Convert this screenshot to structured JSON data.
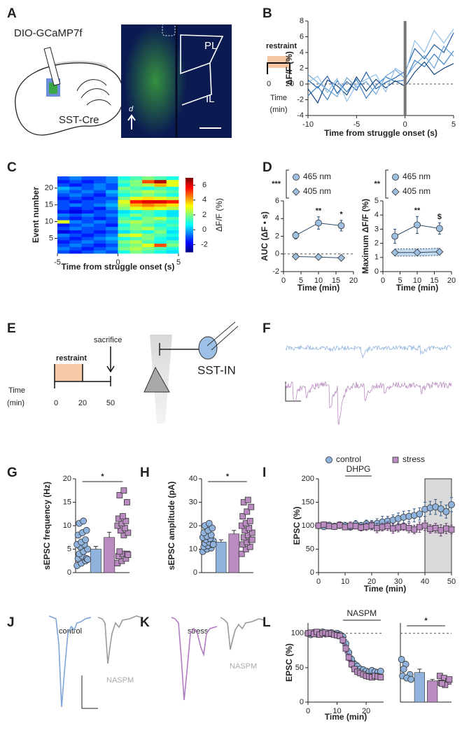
{
  "panel_labels": [
    "A",
    "B",
    "C",
    "D",
    "E",
    "F",
    "G",
    "H",
    "I",
    "J",
    "K",
    "L"
  ],
  "diagrams": {
    "a": {
      "virus": "DIO-GCaMP7f",
      "line": "SST-Cre",
      "top_region": "PL",
      "bottom_region": "IL",
      "orientation": "d"
    },
    "b_inset": {
      "label": "restraint",
      "start": "0",
      "end": "20",
      "axis_title": "Time",
      "axis_unit": "(min)"
    },
    "e": {
      "label": "restraint",
      "event": "sacrifice",
      "axis_title": "Time",
      "axis_unit": "(min)",
      "start": "0",
      "mid": "20",
      "end": "50",
      "cell": "SST-IN"
    },
    "j": {
      "condition": "control",
      "drug": "NASPM"
    },
    "k": {
      "condition": "stress",
      "drug": "NASPM"
    }
  },
  "chart_data": [
    {
      "type": "line",
      "ylabel": "ΔF/F (%)",
      "xlabel": "Time from struggle onset (s)",
      "x": [
        -10,
        -9,
        -8,
        -7,
        -6,
        -5,
        -4,
        -3,
        -2,
        -1,
        0,
        1,
        2,
        3,
        4,
        5
      ],
      "xlim": [
        -10,
        5
      ],
      "xticks": [
        -10,
        -5,
        0,
        5
      ],
      "ylim": [
        -4,
        8
      ],
      "yticks": [
        -4,
        -2,
        0,
        2,
        4,
        6,
        8
      ],
      "reference_line": 0,
      "onset_x": 0,
      "series": [
        {
          "color": "#1f5fa8",
          "values": [
            0.5,
            -0.5,
            1.0,
            -1.2,
            0.3,
            -0.8,
            1.5,
            -0.6,
            0.2,
            0.8,
            1.6,
            4.5,
            3.2,
            5.0,
            4.0,
            6.5
          ]
        },
        {
          "color": "#3b7fc4",
          "values": [
            -1.5,
            -0.3,
            -2.0,
            0.4,
            -1.0,
            0.6,
            -1.8,
            -0.2,
            0.9,
            0.3,
            0.5,
            3.0,
            2.2,
            3.8,
            2.5,
            4.2
          ]
        },
        {
          "color": "#6aa4d8",
          "values": [
            1.2,
            0.2,
            -0.7,
            -1.6,
            0.8,
            -0.4,
            0.3,
            -1.3,
            1.0,
            1.8,
            0.7,
            2.4,
            3.6,
            2.0,
            4.8,
            3.5
          ]
        },
        {
          "color": "#12457e",
          "values": [
            -0.6,
            -2.4,
            0.5,
            -0.2,
            -1.4,
            0.9,
            -0.9,
            0.6,
            -0.5,
            0.4,
            -0.3,
            1.5,
            2.8,
            1.2,
            2.0,
            2.6
          ]
        },
        {
          "color": "#8fbfe8",
          "values": [
            0.2,
            1.0,
            -1.1,
            0.7,
            -2.2,
            -0.1,
            0.6,
            1.2,
            -1.0,
            2.0,
            1.2,
            5.5,
            4.0,
            6.8,
            5.2,
            7.0
          ]
        }
      ]
    },
    {
      "type": "heatmap",
      "ylabel": "Event number",
      "xlabel": "Time from struggle onset (s)",
      "x": [
        -4.5,
        -3.5,
        -2.5,
        -1.5,
        -0.5,
        0.5,
        1.5,
        2.5,
        3.5,
        4.5
      ],
      "y": [
        1,
        2,
        3,
        4,
        5,
        6,
        7,
        8,
        9,
        10,
        11,
        12,
        13,
        14,
        15,
        16,
        17,
        18,
        19,
        20,
        21,
        22,
        23
      ],
      "xlim": [
        -5,
        5
      ],
      "xticks": [
        -5,
        0,
        5
      ],
      "ylim": [
        0.5,
        23.5
      ],
      "yticks": [
        5,
        10,
        15,
        20
      ],
      "clim": [
        -3,
        7
      ],
      "cticks": [
        -2,
        0,
        2,
        4,
        6
      ],
      "clabel": "ΔF/F (%)",
      "values": [
        [
          -1,
          -1.5,
          -1,
          -0.5,
          -1,
          1,
          2,
          1.5,
          1,
          0.5
        ],
        [
          -0.5,
          -1,
          -1.5,
          -1,
          -0.5,
          2,
          2.5,
          2,
          1.5,
          1
        ],
        [
          -1,
          -0.5,
          -1,
          -1.5,
          -1,
          1.5,
          2,
          3,
          5,
          2
        ],
        [
          -1.5,
          -1,
          -0.5,
          -1,
          -0.5,
          2,
          2.5,
          1.5,
          1,
          1.5
        ],
        [
          -1,
          -1.5,
          -1,
          -0.5,
          0,
          1,
          1.5,
          2,
          1,
          0.5
        ],
        [
          -0.5,
          -1,
          -1.5,
          -1,
          -0.5,
          2.5,
          3,
          2,
          1.5,
          1
        ],
        [
          -2,
          -1.5,
          -1,
          -1.5,
          -1,
          0.5,
          1.5,
          1,
          2,
          0.5
        ],
        [
          -1,
          -0.5,
          -1,
          -1,
          -0.5,
          1.5,
          2,
          2.5,
          1.5,
          1
        ],
        [
          -1.5,
          -1,
          -0.5,
          -1,
          -1.5,
          1,
          2,
          1.5,
          1,
          1.5
        ],
        [
          3,
          -0.5,
          -1,
          -0.5,
          -1,
          2,
          2.5,
          2,
          1.5,
          1
        ],
        [
          -1,
          -1.5,
          -1,
          -1.5,
          -1,
          1.5,
          1,
          2,
          2.5,
          1.5
        ],
        [
          -0.5,
          -1,
          -0.5,
          -1,
          -0.5,
          1,
          2,
          1.5,
          1,
          0.5
        ],
        [
          -1.5,
          -2,
          -1.5,
          -1,
          -1,
          0.5,
          1,
          1.5,
          1,
          0.5
        ],
        [
          -1,
          -1.5,
          -1,
          -1.5,
          -0.5,
          2,
          3,
          3.5,
          3,
          2.5
        ],
        [
          -1,
          -0.5,
          -1,
          -0.5,
          0,
          2.5,
          4,
          4.5,
          4,
          3.5
        ],
        [
          -1,
          -1.5,
          -1,
          -1,
          -0.5,
          3,
          5.5,
          6,
          6,
          5.5
        ],
        [
          -1.5,
          -1,
          -1.5,
          -1,
          -1,
          2,
          3,
          3.5,
          3,
          2.5
        ],
        [
          -1,
          -0.5,
          -1,
          -1.5,
          -0.5,
          1,
          1.5,
          2,
          1.5,
          1
        ],
        [
          -0.5,
          -1,
          -0.5,
          -1,
          0,
          1.5,
          2,
          2.5,
          2,
          1.5
        ],
        [
          0,
          -0.5,
          -1,
          -0.5,
          -1,
          2,
          1.5,
          1,
          1.5,
          1
        ],
        [
          -1,
          -1.5,
          -1,
          -0.5,
          -1,
          1,
          2,
          2.5,
          4,
          3
        ],
        [
          -1.5,
          -1,
          -1.5,
          -1,
          -0.5,
          1.5,
          2,
          5,
          6.5,
          3
        ],
        [
          -1,
          -0.5,
          -1,
          -1,
          -0.5,
          1,
          1.5,
          2,
          1.5,
          1
        ]
      ]
    },
    {
      "type": "line",
      "ylabel": "AUC (ΔF • s)",
      "xlabel": "Time (min)",
      "x": [
        3.5,
        10,
        16.5
      ],
      "xlim": [
        0,
        20
      ],
      "xticks": [
        0,
        5,
        10,
        15,
        20
      ],
      "ylim": [
        -2,
        6
      ],
      "yticks": [
        -2,
        0,
        2,
        4,
        6
      ],
      "reference_line": 0,
      "legend": "above",
      "legend_significance": "***",
      "series": [
        {
          "name": "465 nm",
          "color": "#9dbfe0",
          "line_color": "#2b4a6e",
          "marker": "circle",
          "values": [
            2.1,
            3.5,
            3.2
          ],
          "errors": [
            0.4,
            0.7,
            0.6
          ],
          "significance": [
            null,
            "**",
            "*"
          ]
        },
        {
          "name": "405 nm",
          "color": "#9dbfe0",
          "line_color": "#2b4a6e",
          "marker": "diamond",
          "values": [
            -0.3,
            -0.35,
            -0.45
          ],
          "errors": [
            0.1,
            0.1,
            0.1
          ]
        }
      ]
    },
    {
      "type": "line",
      "ylabel": "Maximum ΔF/F (%)",
      "xlabel": "Time (min)",
      "x": [
        3.5,
        10,
        16.5
      ],
      "xlim": [
        0,
        20
      ],
      "xticks": [
        0,
        5,
        10,
        15,
        20
      ],
      "ylim": [
        0,
        5
      ],
      "yticks": [
        0,
        1,
        2,
        3,
        4,
        5
      ],
      "legend": "above",
      "legend_significance": "**",
      "series": [
        {
          "name": "465 nm",
          "color": "#9dbfe0",
          "line_color": "#2b4a6e",
          "marker": "circle",
          "values": [
            2.5,
            3.3,
            3.05
          ],
          "errors": [
            0.5,
            0.6,
            0.4
          ],
          "significance": [
            null,
            "**",
            "$"
          ]
        },
        {
          "name": "405 nm",
          "color": "#9dbfe0",
          "line_color": "#2b4a6e",
          "marker": "diamond",
          "band": true,
          "values": [
            1.35,
            1.35,
            1.4
          ],
          "errors": [
            0.25,
            0.25,
            0.25
          ]
        }
      ]
    },
    {
      "type": "bar",
      "ylabel": "sEPSC frequency (Hz)",
      "ylim": [
        0,
        20
      ],
      "yticks": [
        0,
        5,
        10,
        15,
        20
      ],
      "significance": "*",
      "colors": [
        "#8fb3dc",
        "#b98bc0"
      ],
      "markers": [
        "circle",
        "square"
      ],
      "values": [
        5.0,
        7.5
      ],
      "errors": [
        0.6,
        1.1
      ],
      "points": [
        [
          1.5,
          2,
          2.5,
          3,
          3.5,
          3,
          4,
          4.5,
          5,
          5.5,
          6,
          6,
          6.5,
          7,
          8,
          8.5,
          9,
          10.5,
          11,
          2.8
        ],
        [
          2,
          2.5,
          3,
          3.5,
          4,
          4,
          4.5,
          8,
          8.5,
          9,
          9.5,
          10,
          10.5,
          11,
          11.5,
          12,
          15,
          16.5,
          17.5,
          3.8
        ]
      ]
    },
    {
      "type": "bar",
      "ylabel": "sEPSC amplitude (pA)",
      "ylim": [
        0,
        40
      ],
      "yticks": [
        0,
        10,
        20,
        30,
        40
      ],
      "significance": "*",
      "colors": [
        "#8fb3dc",
        "#b98bc0"
      ],
      "markers": [
        "circle",
        "square"
      ],
      "values": [
        13,
        16.5
      ],
      "errors": [
        1,
        1.5
      ],
      "points": [
        [
          9,
          10,
          10.5,
          11,
          11.5,
          12,
          12.5,
          13,
          13.5,
          14,
          14.5,
          15,
          15.5,
          16,
          17,
          18,
          19,
          20,
          21,
          12
        ],
        [
          8,
          10,
          11,
          12,
          13,
          14,
          15,
          16,
          17,
          18,
          19,
          20,
          21,
          22,
          24,
          26,
          28,
          30,
          31,
          14
        ]
      ]
    },
    {
      "type": "line",
      "ylabel": "EPSC (%)",
      "xlabel": "Time (min)",
      "x": [
        0,
        2,
        4,
        6,
        8,
        10,
        12,
        14,
        16,
        18,
        20,
        22,
        24,
        26,
        28,
        30,
        32,
        34,
        36,
        38,
        40,
        42,
        44,
        46,
        48,
        50
      ],
      "xlim": [
        0,
        50
      ],
      "xticks": [
        0,
        10,
        20,
        30,
        40,
        50
      ],
      "ylim": [
        0,
        200
      ],
      "yticks": [
        0,
        50,
        100,
        150,
        200
      ],
      "legend": "top",
      "shaded_x": [
        40,
        50
      ],
      "drug": {
        "label": "DHPG",
        "x": [
          10,
          20
        ]
      },
      "series": [
        {
          "name": "control",
          "color": "#8fb3dc",
          "line_color": "#3a5f8a",
          "marker": "circle",
          "values": [
            100,
            98,
            101,
            99,
            102,
            100,
            97,
            103,
            100,
            104,
            102,
            105,
            108,
            110,
            112,
            115,
            118,
            120,
            122,
            125,
            135,
            138,
            140,
            136,
            130,
            145
          ],
          "errors": [
            6,
            5,
            6,
            5,
            6,
            7,
            6,
            8,
            7,
            8,
            9,
            10,
            12,
            10,
            11,
            12,
            13,
            12,
            14,
            13,
            15,
            14,
            16,
            15,
            14,
            15
          ]
        },
        {
          "name": "stress",
          "color": "#b98bc0",
          "line_color": "#6b3d73",
          "marker": "square",
          "values": [
            100,
            102,
            99,
            98,
            101,
            97,
            100,
            99,
            96,
            98,
            100,
            95,
            97,
            99,
            94,
            96,
            98,
            95,
            92,
            97,
            100,
            93,
            95,
            90,
            94,
            92
          ],
          "errors": [
            5,
            6,
            5,
            6,
            7,
            6,
            8,
            6,
            7,
            8,
            9,
            10,
            8,
            9,
            10,
            9,
            8,
            10,
            9,
            11,
            10,
            9,
            10,
            12,
            11,
            9
          ]
        }
      ]
    },
    {
      "type": "line",
      "ylabel": "EPSC (%)",
      "xlabel": "Time (min)",
      "x": [
        0,
        1,
        2,
        3,
        4,
        5,
        6,
        7,
        8,
        9,
        10,
        11,
        12,
        13,
        14,
        15,
        16,
        17,
        18,
        19,
        20,
        21,
        22,
        23,
        24,
        25
      ],
      "xlim": [
        0,
        26
      ],
      "xticks": [
        0,
        10,
        20
      ],
      "ylim": [
        0,
        115
      ],
      "yticks": [
        0,
        50,
        100
      ],
      "reference_line": 100,
      "drug": {
        "label": "NASPM",
        "x": [
          12,
          25
        ]
      },
      "series": [
        {
          "color": "#8fb3dc",
          "line_color": "#3a5f8a",
          "marker": "circle",
          "values": [
            100,
            98,
            101,
            99,
            100,
            102,
            99,
            100,
            101,
            99,
            100,
            98,
            95,
            85,
            72,
            62,
            55,
            52,
            48,
            47,
            45,
            44,
            46,
            44,
            43,
            45
          ],
          "errors": [
            3,
            3,
            4,
            3,
            4,
            3,
            3,
            4,
            3,
            3,
            4,
            4,
            5,
            6,
            6,
            5,
            5,
            5,
            4,
            4,
            4,
            4,
            4,
            4,
            4,
            4
          ]
        },
        {
          "color": "#b98bc0",
          "line_color": "#6b3d73",
          "marker": "square",
          "values": [
            100,
            101,
            99,
            102,
            98,
            100,
            101,
            99,
            100,
            98,
            97,
            96,
            90,
            78,
            65,
            55,
            48,
            44,
            42,
            40,
            38,
            37,
            36,
            38,
            37,
            36
          ],
          "errors": [
            4,
            3,
            4,
            3,
            3,
            4,
            3,
            3,
            4,
            3,
            3,
            4,
            5,
            6,
            5,
            5,
            4,
            4,
            3,
            3,
            3,
            3,
            3,
            3,
            3,
            3
          ]
        }
      ]
    },
    {
      "type": "bar",
      "ylim": [
        0,
        115
      ],
      "reference_line": 100,
      "significance": "*",
      "colors": [
        "#8fb3dc",
        "#b98bc0"
      ],
      "markers": [
        "circle",
        "square"
      ],
      "values": [
        43,
        31
      ],
      "errors": [
        5,
        2
      ],
      "points": [
        [
          62,
          55,
          40,
          38,
          35,
          33,
          48
        ],
        [
          38,
          35,
          30,
          28,
          25,
          33,
          27
        ]
      ]
    }
  ]
}
